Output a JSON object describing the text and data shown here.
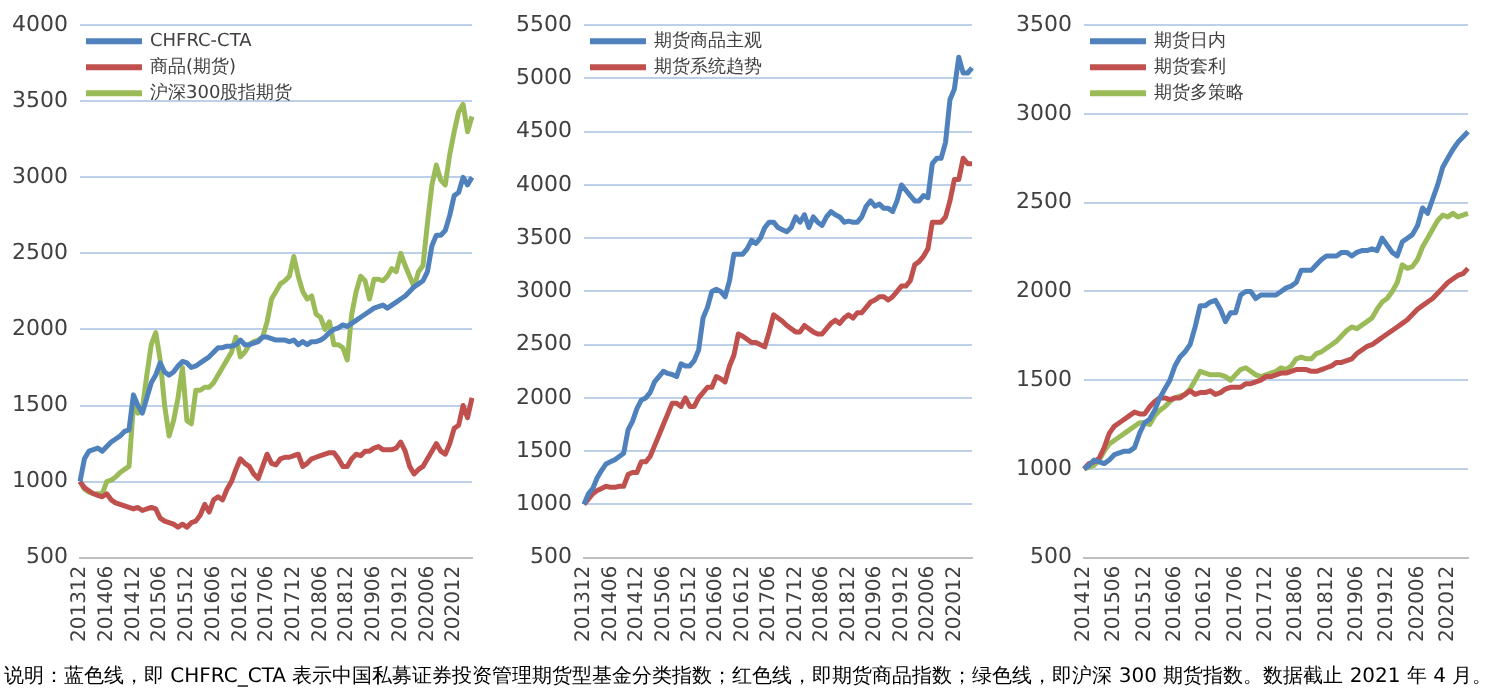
{
  "chart_data": [
    {
      "type": "line",
      "categories": [
        "201312",
        null,
        null,
        null,
        null,
        null,
        "201406",
        null,
        null,
        null,
        null,
        null,
        "201412",
        null,
        null,
        null,
        null,
        null,
        "201506",
        null,
        null,
        null,
        null,
        null,
        "201512",
        null,
        null,
        null,
        null,
        null,
        "201606",
        null,
        null,
        null,
        null,
        null,
        "201612",
        null,
        null,
        null,
        null,
        null,
        "201706",
        null,
        null,
        null,
        null,
        null,
        "201712",
        null,
        null,
        null,
        null,
        null,
        "201806",
        null,
        null,
        null,
        null,
        null,
        "201812",
        null,
        null,
        null,
        null,
        null,
        "201906",
        null,
        null,
        null,
        null,
        null,
        "201912",
        null,
        null,
        null,
        null,
        null,
        "202006",
        null,
        null,
        null,
        null,
        null,
        "202012",
        null,
        null,
        null,
        null
      ],
      "ylim": [
        500,
        4000
      ],
      "yticks": [
        500,
        1000,
        1500,
        2000,
        2500,
        3000,
        3500,
        4000
      ],
      "grid": "y",
      "legend": "top left",
      "marker": "none",
      "line_style": "solid",
      "series": [
        {
          "name": "CHFRC-CTA",
          "color": "#4f81bd",
          "values": [
            1000,
            1150,
            1200,
            1210,
            1220,
            1200,
            1230,
            1260,
            1280,
            1300,
            1330,
            1340,
            1570,
            1500,
            1450,
            1550,
            1650,
            1700,
            1780,
            1720,
            1700,
            1720,
            1760,
            1790,
            1780,
            1750,
            1760,
            1780,
            1800,
            1820,
            1850,
            1880,
            1880,
            1890,
            1890,
            1900,
            1930,
            1900,
            1900,
            1910,
            1920,
            1950,
            1950,
            1940,
            1930,
            1930,
            1930,
            1920,
            1930,
            1900,
            1920,
            1900,
            1920,
            1920,
            1930,
            1950,
            1980,
            2000,
            2010,
            2030,
            2020,
            2040,
            2060,
            2080,
            2100,
            2120,
            2140,
            2150,
            2160,
            2140,
            2160,
            2180,
            2200,
            2220,
            2250,
            2280,
            2300,
            2320,
            2380,
            2550,
            2620,
            2620,
            2650,
            2750,
            2880,
            2900,
            3000,
            2950,
            3000
          ]
        },
        {
          "name": "商品(期货)",
          "color": "#c0504d",
          "values": [
            1000,
            960,
            940,
            920,
            910,
            900,
            920,
            880,
            860,
            850,
            840,
            830,
            820,
            830,
            810,
            820,
            830,
            820,
            760,
            740,
            730,
            720,
            700,
            720,
            700,
            730,
            740,
            780,
            850,
            800,
            880,
            900,
            880,
            950,
            1000,
            1080,
            1150,
            1120,
            1100,
            1050,
            1020,
            1100,
            1180,
            1120,
            1110,
            1150,
            1160,
            1160,
            1170,
            1180,
            1100,
            1120,
            1150,
            1160,
            1170,
            1180,
            1190,
            1190,
            1150,
            1100,
            1100,
            1150,
            1180,
            1170,
            1200,
            1200,
            1220,
            1230,
            1210,
            1210,
            1210,
            1220,
            1260,
            1200,
            1100,
            1050,
            1080,
            1100,
            1150,
            1200,
            1250,
            1200,
            1180,
            1250,
            1350,
            1370,
            1500,
            1420,
            1550
          ]
        },
        {
          "name": "沪深300股指期货",
          "color": "#9bbb59",
          "values": [
            1000,
            950,
            930,
            920,
            920,
            920,
            1000,
            1010,
            1030,
            1060,
            1080,
            1100,
            1500,
            1450,
            1480,
            1700,
            1900,
            1980,
            1800,
            1500,
            1300,
            1400,
            1550,
            1750,
            1400,
            1380,
            1600,
            1600,
            1620,
            1620,
            1650,
            1700,
            1750,
            1800,
            1850,
            1950,
            1820,
            1850,
            1900,
            1920,
            1930,
            1950,
            2050,
            2200,
            2250,
            2300,
            2320,
            2350,
            2480,
            2350,
            2250,
            2200,
            2220,
            2100,
            2080,
            2000,
            2050,
            1900,
            1900,
            1880,
            1800,
            2100,
            2250,
            2350,
            2320,
            2200,
            2330,
            2330,
            2320,
            2350,
            2400,
            2380,
            2500,
            2420,
            2350,
            2280,
            2380,
            2420,
            2700,
            2950,
            3080,
            2980,
            2950,
            3150,
            3300,
            3430,
            3480,
            3300,
            3400
          ]
        }
      ]
    },
    {
      "type": "line",
      "categories": [
        "201312",
        null,
        null,
        null,
        null,
        null,
        "201406",
        null,
        null,
        null,
        null,
        null,
        "201412",
        null,
        null,
        null,
        null,
        null,
        "201506",
        null,
        null,
        null,
        null,
        null,
        "201512",
        null,
        null,
        null,
        null,
        null,
        "201606",
        null,
        null,
        null,
        null,
        null,
        "201612",
        null,
        null,
        null,
        null,
        null,
        "201706",
        null,
        null,
        null,
        null,
        null,
        "201712",
        null,
        null,
        null,
        null,
        null,
        "201806",
        null,
        null,
        null,
        null,
        null,
        "201812",
        null,
        null,
        null,
        null,
        null,
        "201906",
        null,
        null,
        null,
        null,
        null,
        "201912",
        null,
        null,
        null,
        null,
        null,
        "202006",
        null,
        null,
        null,
        null,
        null,
        "202012",
        null,
        null,
        null,
        null
      ],
      "ylim": [
        500,
        5500
      ],
      "yticks": [
        500,
        1000,
        1500,
        2000,
        2500,
        3000,
        3500,
        4000,
        4500,
        5000,
        5500
      ],
      "grid": "y",
      "legend": "top left",
      "marker": "none",
      "line_style": "solid",
      "series": [
        {
          "name": "期货商品主观",
          "color": "#4f81bd",
          "values": [
            1000,
            1100,
            1150,
            1250,
            1320,
            1380,
            1400,
            1420,
            1450,
            1480,
            1700,
            1780,
            1900,
            1980,
            2000,
            2050,
            2150,
            2200,
            2250,
            2230,
            2220,
            2200,
            2320,
            2300,
            2300,
            2350,
            2450,
            2750,
            2850,
            3000,
            3020,
            3000,
            2950,
            3100,
            3350,
            3350,
            3350,
            3400,
            3480,
            3450,
            3500,
            3600,
            3650,
            3650,
            3600,
            3580,
            3560,
            3600,
            3700,
            3650,
            3720,
            3600,
            3700,
            3650,
            3620,
            3700,
            3750,
            3720,
            3700,
            3650,
            3660,
            3650,
            3650,
            3700,
            3800,
            3850,
            3800,
            3820,
            3780,
            3780,
            3750,
            3850,
            4000,
            3950,
            3900,
            3850,
            3850,
            3900,
            3880,
            4200,
            4250,
            4250,
            4400,
            4800,
            4900,
            5200,
            5050,
            5050,
            5100
          ]
        },
        {
          "name": "期货系统趋势",
          "color": "#c0504d",
          "values": [
            1000,
            1050,
            1100,
            1130,
            1150,
            1170,
            1160,
            1160,
            1170,
            1170,
            1280,
            1300,
            1300,
            1400,
            1400,
            1450,
            1550,
            1650,
            1750,
            1850,
            1950,
            1950,
            1920,
            2000,
            1920,
            1920,
            2000,
            2050,
            2100,
            2100,
            2200,
            2180,
            2150,
            2300,
            2400,
            2600,
            2580,
            2550,
            2520,
            2520,
            2500,
            2480,
            2620,
            2780,
            2750,
            2720,
            2680,
            2650,
            2620,
            2620,
            2680,
            2650,
            2620,
            2600,
            2600,
            2650,
            2700,
            2730,
            2700,
            2750,
            2780,
            2750,
            2800,
            2800,
            2850,
            2900,
            2920,
            2950,
            2950,
            2920,
            2950,
            3000,
            3050,
            3050,
            3100,
            3250,
            3280,
            3330,
            3400,
            3650,
            3650,
            3650,
            3700,
            3850,
            4050,
            4050,
            4250,
            4200,
            4200
          ]
        }
      ]
    },
    {
      "type": "line",
      "categories": [
        "201412",
        null,
        null,
        null,
        null,
        null,
        "201506",
        null,
        null,
        null,
        null,
        null,
        "201512",
        null,
        null,
        null,
        null,
        null,
        "201606",
        null,
        null,
        null,
        null,
        null,
        "201612",
        null,
        null,
        null,
        null,
        null,
        "201706",
        null,
        null,
        null,
        null,
        null,
        "201712",
        null,
        null,
        null,
        null,
        null,
        "201806",
        null,
        null,
        null,
        null,
        null,
        "201812",
        null,
        null,
        null,
        null,
        null,
        "201906",
        null,
        null,
        null,
        null,
        null,
        "201912",
        null,
        null,
        null,
        null,
        null,
        "202006",
        null,
        null,
        null,
        null,
        null,
        "202012",
        null,
        null,
        null,
        null
      ],
      "ylim": [
        500,
        3500
      ],
      "yticks": [
        500,
        1000,
        1500,
        2000,
        2500,
        3000,
        3500
      ],
      "grid": "y",
      "legend": "top left",
      "marker": "none",
      "line_style": "solid",
      "series": [
        {
          "name": "期货日内",
          "color": "#4f81bd",
          "values": [
            1000,
            1020,
            1050,
            1040,
            1030,
            1050,
            1080,
            1090,
            1100,
            1100,
            1120,
            1200,
            1260,
            1280,
            1330,
            1400,
            1450,
            1500,
            1580,
            1630,
            1660,
            1700,
            1800,
            1920,
            1920,
            1940,
            1950,
            1900,
            1830,
            1880,
            1880,
            1980,
            2000,
            2000,
            1960,
            1980,
            1980,
            1980,
            1980,
            2000,
            2020,
            2030,
            2050,
            2120,
            2120,
            2120,
            2150,
            2180,
            2200,
            2200,
            2200,
            2220,
            2220,
            2200,
            2220,
            2230,
            2230,
            2240,
            2230,
            2300,
            2260,
            2220,
            2200,
            2280,
            2300,
            2320,
            2370,
            2470,
            2440,
            2520,
            2600,
            2700,
            2750,
            2800,
            2840,
            2870,
            2900
          ]
        },
        {
          "name": "期货套利",
          "color": "#c0504d",
          "values": [
            1000,
            1030,
            1040,
            1060,
            1120,
            1200,
            1240,
            1260,
            1280,
            1300,
            1320,
            1310,
            1310,
            1350,
            1380,
            1400,
            1400,
            1390,
            1400,
            1400,
            1420,
            1440,
            1420,
            1430,
            1430,
            1440,
            1420,
            1430,
            1450,
            1460,
            1460,
            1460,
            1480,
            1480,
            1490,
            1500,
            1520,
            1520,
            1530,
            1540,
            1540,
            1550,
            1560,
            1560,
            1560,
            1550,
            1550,
            1560,
            1570,
            1580,
            1600,
            1600,
            1610,
            1620,
            1650,
            1670,
            1690,
            1700,
            1720,
            1740,
            1760,
            1780,
            1800,
            1820,
            1840,
            1870,
            1900,
            1920,
            1940,
            1960,
            1990,
            2020,
            2050,
            2070,
            2090,
            2100,
            2130
          ]
        },
        {
          "name": "期货多策略",
          "color": "#9bbb59",
          "values": [
            1000,
            1010,
            1020,
            1050,
            1100,
            1140,
            1160,
            1180,
            1200,
            1220,
            1240,
            1260,
            1260,
            1250,
            1300,
            1330,
            1350,
            1380,
            1400,
            1410,
            1420,
            1450,
            1500,
            1550,
            1540,
            1530,
            1530,
            1530,
            1520,
            1500,
            1530,
            1560,
            1570,
            1550,
            1530,
            1520,
            1530,
            1540,
            1550,
            1570,
            1560,
            1580,
            1620,
            1630,
            1620,
            1620,
            1650,
            1660,
            1680,
            1700,
            1720,
            1750,
            1780,
            1800,
            1790,
            1810,
            1830,
            1850,
            1900,
            1940,
            1960,
            2000,
            2050,
            2150,
            2130,
            2140,
            2180,
            2250,
            2300,
            2350,
            2400,
            2430,
            2420,
            2440,
            2420,
            2430,
            2440
          ]
        }
      ],
      "annotations": [
        "说明：蓝色线，即 CHFRC_CTA 表示中国私募证券投资管理期货型基金分类指数；红色线，即期货商品指数；绿色线，即沪深 300 期货指数。数据截止 2021 年 4 月。"
      ]
    }
  ]
}
